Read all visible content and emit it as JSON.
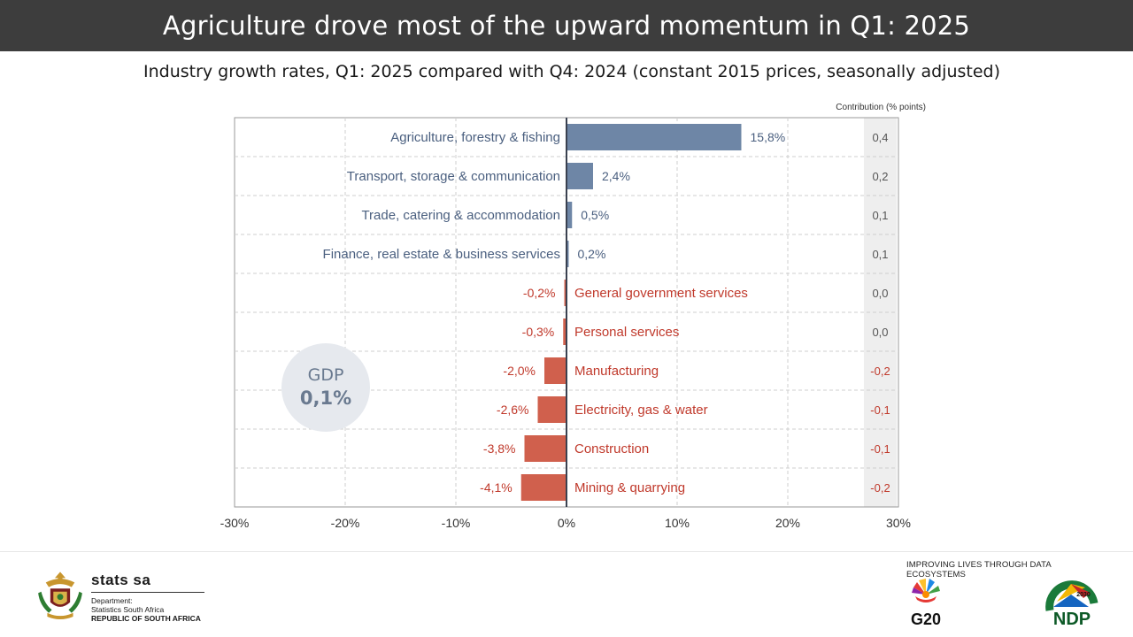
{
  "header": {
    "title": "Agriculture drove most of the upward momentum in Q1: 2025",
    "subtitle": "Industry growth rates, Q1: 2025 compared with Q4: 2024 (constant 2015 prices, seasonally adjusted)"
  },
  "chart_data": {
    "type": "bar",
    "orientation": "horizontal",
    "categories": [
      "Agriculture, forestry & fishing",
      "Transport, storage & communication",
      "Trade, catering & accommodation",
      "Finance, real estate & business services",
      "General government services",
      "Personal services",
      "Manufacturing",
      "Electricity, gas & water",
      "Construction",
      "Mining & quarrying"
    ],
    "values": [
      15.8,
      2.4,
      0.5,
      0.2,
      -0.2,
      -0.3,
      -2.0,
      -2.6,
      -3.8,
      -4.1
    ],
    "value_labels": [
      "15,8%",
      "2,4%",
      "0,5%",
      "0,2%",
      "-0,2%",
      "-0,3%",
      "-2,0%",
      "-2,6%",
      "-3,8%",
      "-4,1%"
    ],
    "contributions": [
      "0,4",
      "0,2",
      "0,1",
      "0,1",
      "0,0",
      "0,0",
      "-0,2",
      "-0,1",
      "-0,1",
      "-0,2"
    ],
    "contribution_header": "Contribution (% points)",
    "xlim": [
      -30,
      30
    ],
    "x_ticks": [
      -30,
      -20,
      -10,
      0,
      10,
      20,
      30
    ],
    "x_tick_labels": [
      "-30%",
      "-20%",
      "-10%",
      "0%",
      "10%",
      "20%",
      "30%"
    ],
    "gdp": {
      "label": "GDP",
      "value": "0,1%"
    },
    "grid": true,
    "colors": {
      "positive": "#6e86a6",
      "negative": "#d0604d",
      "positive_text": "#4a5f7f",
      "negative_text": "#c0392b",
      "contribution_bg": "#eeeeee",
      "gdp_circle": "#e6e9ee"
    }
  },
  "footer": {
    "stats_name": "stats sa",
    "department": "Department:",
    "agency": "Statistics South Africa",
    "republic": "REPUBLIC OF SOUTH AFRICA",
    "tagline": "IMPROVING LIVES THROUGH DATA ECOSYSTEMS",
    "g20_text": "G20",
    "ndp_text": "NDP",
    "ndp_year": "2030",
    "icons": [
      "coat-of-arms-icon",
      "g20-logo-icon",
      "ndp-logo-icon"
    ]
  }
}
